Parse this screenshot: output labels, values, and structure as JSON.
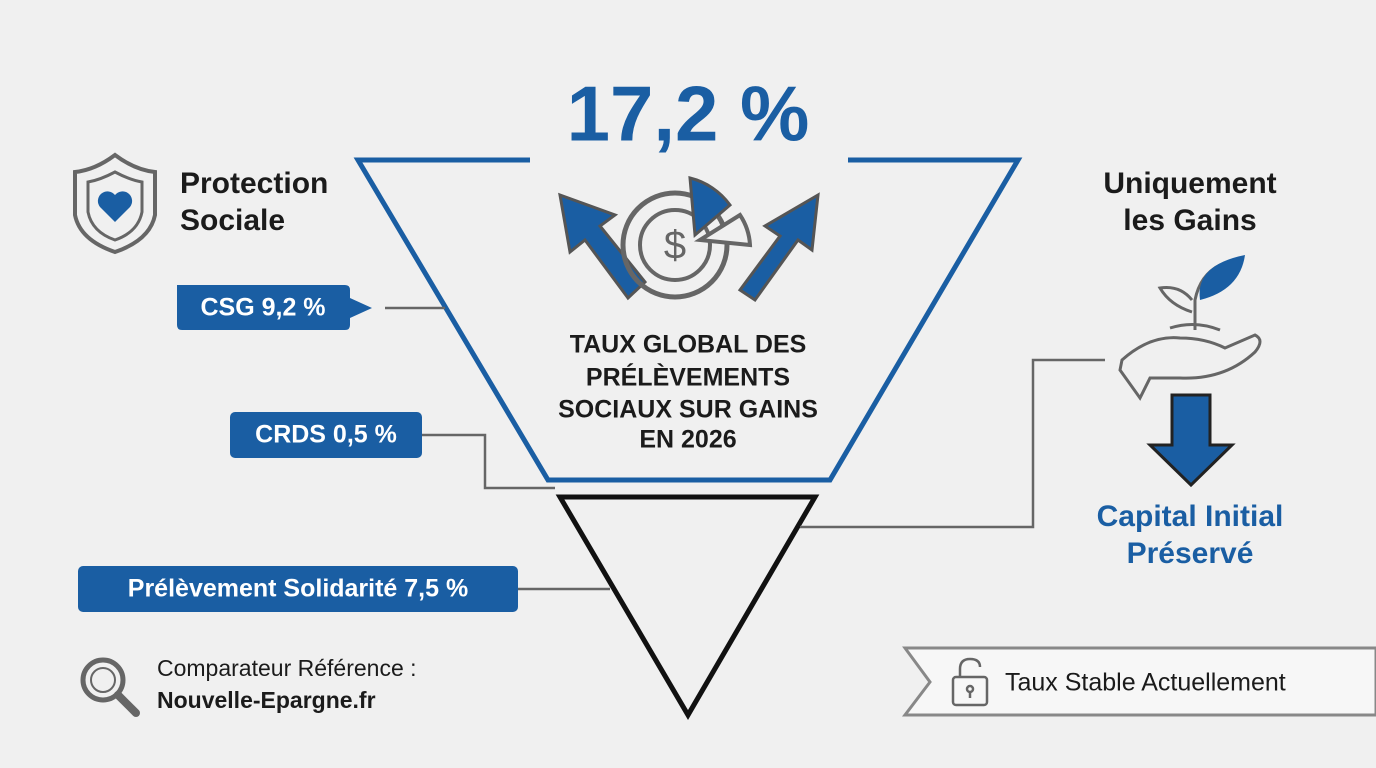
{
  "headline": "17,2 %",
  "left": {
    "title_lines": [
      "Protection",
      "Sociale"
    ]
  },
  "tags": [
    "CSG 9,2 %",
    "CRDS 0,5 %",
    "Prélèvement Solidarité 7,5 %"
  ],
  "center": {
    "lines": [
      "TAUX GLOBAL DES",
      "PRÉLÈVEMENTS",
      "SOCIAUX SUR GAINS",
      "EN 2026"
    ]
  },
  "right": {
    "title_lines": [
      "Uniquement",
      "les Gains"
    ],
    "result_lines": [
      "Capital Initial",
      "Préservé"
    ]
  },
  "footer": {
    "label": "Comparateur Référence :",
    "site": "Nouvelle-Epargne.fr"
  },
  "badge": {
    "text": "Taux Stable Actuellement"
  }
}
